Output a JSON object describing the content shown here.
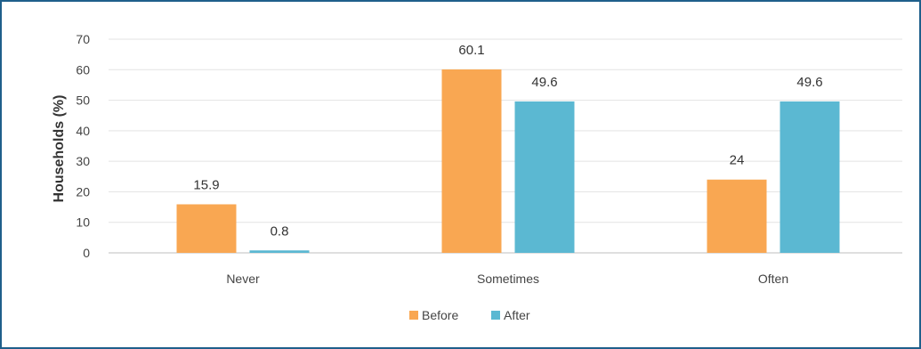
{
  "chart_data": {
    "type": "bar",
    "categories": [
      "Never",
      "Sometimes",
      "Often"
    ],
    "series": [
      {
        "name": "Before",
        "values": [
          15.9,
          60.1,
          24
        ],
        "labels": [
          "15.9",
          "60.1",
          "24"
        ],
        "color": "#f9a752"
      },
      {
        "name": "After",
        "values": [
          0.8,
          49.6,
          49.6
        ],
        "labels": [
          "0.8",
          "49.6",
          "49.6"
        ],
        "color": "#5bb8d2"
      }
    ],
    "title": "",
    "xlabel": "",
    "ylabel": "Households (%)",
    "ylim": [
      0,
      70
    ],
    "yticks": [
      0,
      10,
      20,
      30,
      40,
      50,
      60,
      70
    ],
    "grid": true,
    "legend": "bottom-center"
  },
  "colors": {
    "border": "#1f5f8b",
    "grid": "#e3e3e3",
    "axis": "#bfbfbf"
  }
}
